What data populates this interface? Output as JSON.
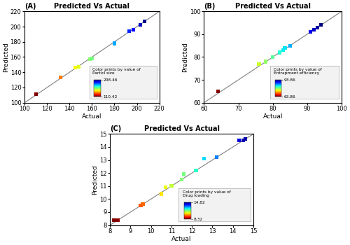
{
  "chart_data": [
    {
      "type": "scatter",
      "panel_label": "(A)",
      "title": "Predicted Vs Actual",
      "xlabel": "Actual",
      "ylabel": "Predicted",
      "x": [
        110,
        132,
        145,
        148,
        158,
        160,
        180,
        193,
        197,
        203,
        207
      ],
      "values": [
        111,
        133,
        146,
        147,
        157,
        158,
        178,
        194,
        196,
        202,
        207
      ],
      "xlim": [
        100,
        220
      ],
      "ylim": [
        100,
        220
      ],
      "xticks": [
        100,
        120,
        140,
        160,
        180,
        200,
        220
      ],
      "yticks": [
        100,
        120,
        140,
        160,
        180,
        200,
        220
      ],
      "marker": "square",
      "colorbar_title": "Color prints by value of\nParticl size",
      "colorbar_lim": [
        110.42,
        208.46
      ],
      "colorbar_ticks": [
        110.42,
        208.46
      ]
    },
    {
      "type": "scatter",
      "panel_label": "(B)",
      "title": "Predicted Vs Actual",
      "xlabel": "Actual",
      "ylabel": "Predicted",
      "x": [
        64,
        76,
        78,
        80,
        82,
        83,
        83.5,
        85,
        91,
        92,
        93,
        94
      ],
      "values": [
        65,
        77,
        78,
        80,
        82,
        83,
        84,
        85,
        91,
        92,
        93,
        94
      ],
      "xlim": [
        60,
        100
      ],
      "ylim": [
        60,
        100
      ],
      "xticks": [
        60,
        70,
        80,
        90,
        100
      ],
      "yticks": [
        60,
        70,
        80,
        90,
        100
      ],
      "marker": "square",
      "colorbar_title": "Color prints by value of\nEntrapment efficiency",
      "colorbar_lim": [
        63.86,
        93.86
      ],
      "colorbar_ticks": [
        63.86,
        93.86
      ]
    },
    {
      "type": "scatter",
      "panel_label": "(C)",
      "title": "Predicted Vs Actual",
      "xlabel": "Actual",
      "ylabel": "Predicted",
      "x": [
        8.2,
        8.4,
        9.5,
        9.6,
        10.5,
        10.7,
        11.0,
        11.5,
        11.6,
        12.2,
        12.6,
        13.2,
        14.3,
        14.5,
        14.6
      ],
      "values": [
        8.4,
        8.4,
        9.5,
        9.6,
        10.4,
        10.9,
        11.0,
        11.5,
        11.9,
        12.2,
        13.1,
        13.2,
        14.5,
        14.5,
        14.6
      ],
      "xlim": [
        8,
        15
      ],
      "ylim": [
        8,
        15
      ],
      "xticks": [
        8,
        9,
        10,
        11,
        12,
        13,
        14,
        15
      ],
      "yticks": [
        8,
        9,
        10,
        11,
        12,
        13,
        14,
        15
      ],
      "marker": "square",
      "colorbar_title": "Color prints by value of\nDrug loading",
      "colorbar_lim": [
        8.32,
        14.82
      ],
      "colorbar_ticks": [
        8.32,
        14.82
      ]
    }
  ]
}
